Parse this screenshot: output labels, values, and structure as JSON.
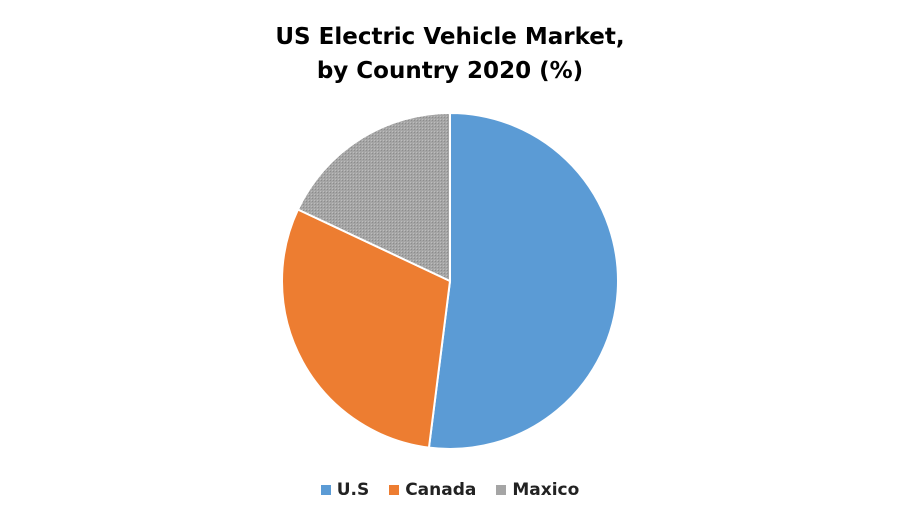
{
  "chart_data": {
    "type": "pie",
    "title": [
      "US Electric Vehicle Market,",
      "by Country 2020 (%)"
    ],
    "categories": [
      "U.S",
      "Canada",
      "Maxico"
    ],
    "values": [
      52,
      30,
      18
    ],
    "colors": [
      "#5B9BD5",
      "#ED7D31",
      "#A5A5A5"
    ],
    "start_angle_deg": 0,
    "direction": "clockwise",
    "legend": "bottom"
  }
}
